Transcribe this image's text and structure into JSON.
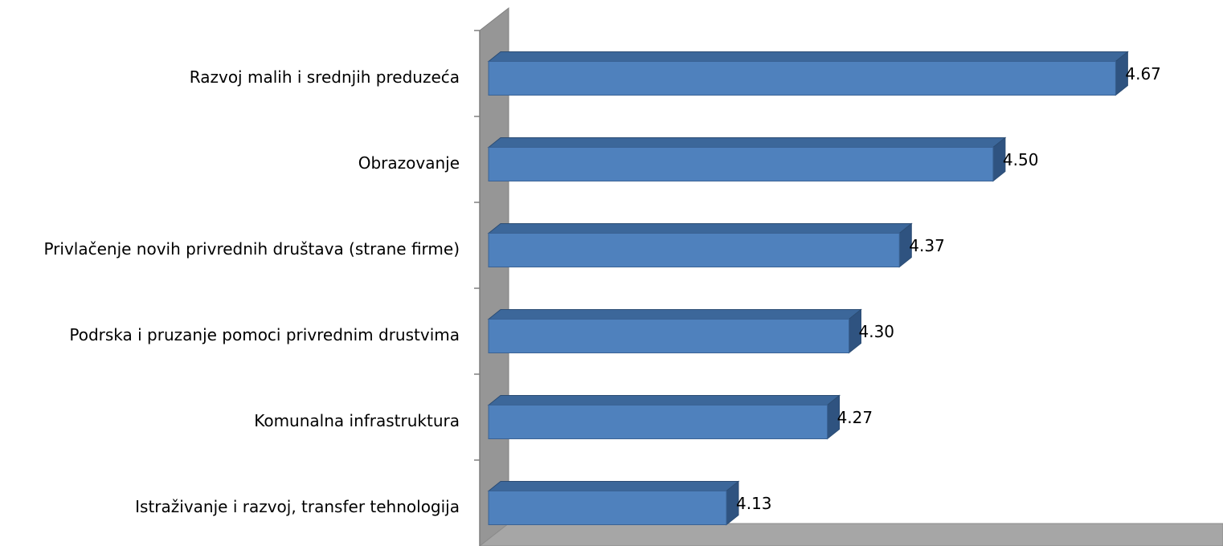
{
  "chart_data": {
    "type": "bar3d-horizontal",
    "categories": [
      "Razvoj malih i srednjih preduzeća",
      "Obrazovanje",
      "Privlačenje novih privrednih društava (strane firme)",
      "Podrska i pruzanje pomoci privrednim drustvima",
      "Komunalna infrastruktura",
      "Istraživanje i razvoj, transfer tehnologija"
    ],
    "values": [
      4.67,
      4.5,
      4.37,
      4.3,
      4.27,
      4.13
    ],
    "value_labels": [
      "4.67",
      "4.50",
      "4.37",
      "4.30",
      "4.27",
      "4.13"
    ],
    "color": "#4f81bd",
    "xlim": [
      3.8,
      4.8
    ]
  }
}
